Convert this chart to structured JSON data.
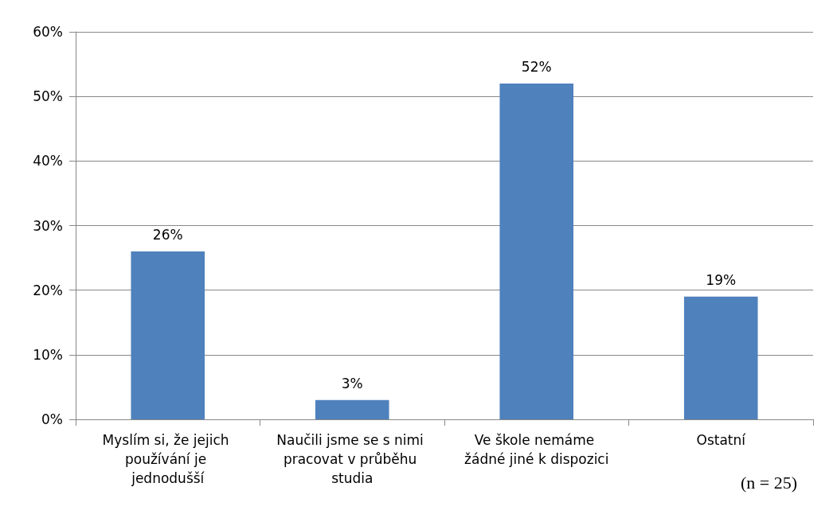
{
  "chart_data": {
    "type": "bar",
    "categories": [
      "Myslím si, že jejich používání je jednodušší",
      "Naučili jsme se s nimi pracovat v průběhu studia",
      "Ve škole nemáme žádné jiné k dispozici",
      "Ostatní"
    ],
    "values": [
      26,
      3,
      52,
      19
    ],
    "value_labels": [
      "26%",
      "3%",
      "52%",
      "19%"
    ],
    "color": "#4f81bd",
    "ylim": [
      0,
      60
    ],
    "yticks": [
      {
        "value": 0,
        "label": "0%"
      },
      {
        "value": 10,
        "label": "10%"
      },
      {
        "value": 20,
        "label": "20%"
      },
      {
        "value": 30,
        "label": "30%"
      },
      {
        "value": 40,
        "label": "40%"
      },
      {
        "value": 50,
        "label": "50%"
      },
      {
        "value": 60,
        "label": "60%"
      }
    ],
    "grid": true,
    "annotations": [
      "(n = 25)"
    ]
  }
}
